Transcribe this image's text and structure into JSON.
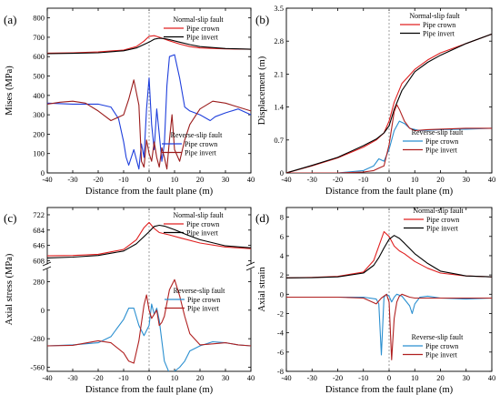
{
  "chart_data": [
    {
      "type": "line",
      "panel_label": "(a)",
      "xlabel": "Distance from the fault plane (m)",
      "ylabel": "Mises (MPa)",
      "xlim": [
        -40,
        40
      ],
      "ylim": [
        0,
        850
      ],
      "xticks": [
        -40,
        -30,
        -20,
        -10,
        0,
        10,
        20,
        30,
        40
      ],
      "yticks": [
        0,
        100,
        200,
        300,
        400,
        500,
        600,
        700,
        800
      ],
      "fault_line_x": 0,
      "legends": [
        {
          "title": "Normal-slip fault",
          "placement": "top-right",
          "entries": [
            {
              "label": "Pipe crown",
              "color": "#e02020"
            },
            {
              "label": "Pipe invert",
              "color": "#000000"
            }
          ]
        },
        {
          "title": "Reverse-slip fault",
          "placement": "bottom-right",
          "entries": [
            {
              "label": "Pipe crown",
              "color": "#1f3fdc"
            },
            {
              "label": "Pipe invert",
              "color": "#9b1c1c"
            }
          ]
        }
      ],
      "series": [
        {
          "group": "Normal-slip fault",
          "name": "Pipe crown",
          "color": "#e02020",
          "x": [
            -40,
            -30,
            -20,
            -10,
            -5,
            -2,
            0,
            2,
            4,
            8,
            12,
            16,
            20,
            30,
            40
          ],
          "y": [
            618,
            620,
            624,
            634,
            652,
            680,
            705,
            708,
            700,
            682,
            665,
            652,
            645,
            640,
            638
          ]
        },
        {
          "group": "Normal-slip fault",
          "name": "Pipe invert",
          "color": "#000000",
          "x": [
            -40,
            -30,
            -20,
            -10,
            -5,
            0,
            2,
            4,
            6,
            8,
            12,
            16,
            20,
            30,
            40
          ],
          "y": [
            615,
            617,
            620,
            630,
            645,
            675,
            690,
            695,
            693,
            688,
            675,
            662,
            652,
            642,
            638
          ]
        },
        {
          "group": "Reverse-slip fault",
          "name": "Pipe crown",
          "color": "#1f3fdc",
          "x": [
            -40,
            -30,
            -20,
            -15,
            -12,
            -10,
            -9,
            -8,
            -6,
            -4,
            -3,
            -2,
            -1,
            0,
            1,
            2,
            3,
            4,
            5,
            6,
            7,
            8,
            10,
            12,
            14,
            16,
            20,
            24,
            26,
            30,
            35,
            40
          ],
          "y": [
            360,
            355,
            355,
            340,
            280,
            160,
            80,
            40,
            120,
            20,
            150,
            80,
            330,
            490,
            250,
            120,
            330,
            200,
            60,
            150,
            450,
            600,
            610,
            490,
            340,
            320,
            300,
            270,
            290,
            310,
            330,
            300
          ]
        },
        {
          "group": "Reverse-slip fault",
          "name": "Pipe invert",
          "color": "#9b1c1c",
          "x": [
            -40,
            -35,
            -30,
            -25,
            -20,
            -15,
            -10,
            -8,
            -6,
            -4,
            -3,
            -2,
            -1,
            0,
            1,
            2,
            3,
            4,
            5,
            6,
            7,
            8,
            9,
            10,
            12,
            14,
            16,
            20,
            25,
            30,
            35,
            40
          ],
          "y": [
            355,
            365,
            370,
            360,
            320,
            270,
            300,
            380,
            480,
            350,
            60,
            30,
            170,
            100,
            60,
            160,
            80,
            30,
            130,
            80,
            20,
            170,
            300,
            120,
            60,
            170,
            250,
            330,
            370,
            360,
            340,
            320
          ]
        }
      ]
    },
    {
      "type": "line",
      "panel_label": "(b)",
      "xlabel": "Distance from the fault plane (m)",
      "ylabel": "Displacement (m)",
      "xlim": [
        -40,
        40
      ],
      "ylim": [
        0,
        3.5
      ],
      "xticks": [
        -40,
        -30,
        -20,
        -10,
        0,
        10,
        20,
        30,
        40
      ],
      "yticks": [
        0.0,
        0.7,
        1.4,
        2.1,
        2.8,
        3.5
      ],
      "fault_line_x": 0,
      "legends": [
        {
          "title": "Normal-slip fault",
          "placement": "top-right",
          "entries": [
            {
              "label": "Pipe crown",
              "color": "#e02020"
            },
            {
              "label": "Pipe invert",
              "color": "#000000"
            }
          ]
        },
        {
          "title": "Reverse-slip fault",
          "placement": "lower-right",
          "entries": [
            {
              "label": "Pipe crown",
              "color": "#2a8fd0"
            },
            {
              "label": "Pipe invert",
              "color": "#b02020"
            }
          ]
        }
      ],
      "series": [
        {
          "group": "Normal-slip fault",
          "name": "Pipe crown",
          "color": "#e02020",
          "x": [
            -40,
            -30,
            -20,
            -10,
            -5,
            -2,
            0,
            2,
            5,
            10,
            15,
            20,
            30,
            40
          ],
          "y": [
            0.0,
            0.15,
            0.32,
            0.55,
            0.7,
            0.85,
            1.1,
            1.5,
            1.9,
            2.2,
            2.4,
            2.55,
            2.75,
            2.95
          ]
        },
        {
          "group": "Normal-slip fault",
          "name": "Pipe invert",
          "color": "#000000",
          "x": [
            -40,
            -30,
            -20,
            -10,
            -5,
            -2,
            0,
            2,
            5,
            10,
            15,
            20,
            30,
            40
          ],
          "y": [
            0.0,
            0.16,
            0.33,
            0.58,
            0.72,
            0.85,
            1.0,
            1.35,
            1.75,
            2.15,
            2.35,
            2.5,
            2.75,
            2.95
          ]
        },
        {
          "group": "Reverse-slip fault",
          "name": "Pipe crown",
          "color": "#2a8fd0",
          "x": [
            -40,
            -20,
            -10,
            -6,
            -4,
            -2,
            0,
            2,
            4,
            6,
            8,
            12,
            20,
            30,
            40
          ],
          "y": [
            0.0,
            0.0,
            0.05,
            0.15,
            0.3,
            0.25,
            0.5,
            0.9,
            1.1,
            1.05,
            0.95,
            0.9,
            0.92,
            0.93,
            0.95
          ]
        },
        {
          "group": "Reverse-slip fault",
          "name": "Pipe invert",
          "color": "#b02020",
          "x": [
            -40,
            -20,
            -10,
            -6,
            -4,
            -2,
            0,
            2,
            3,
            4,
            6,
            8,
            10,
            15,
            20,
            30,
            40
          ],
          "y": [
            0.0,
            0.0,
            0.02,
            0.05,
            0.1,
            0.15,
            0.6,
            1.3,
            1.45,
            1.35,
            1.1,
            0.95,
            0.9,
            0.92,
            0.93,
            0.95,
            0.95
          ]
        }
      ]
    },
    {
      "type": "line",
      "panel_label": "(c)",
      "xlabel": "Distance from the fault plane (m)",
      "ylabel": "Axial stress (MPa)",
      "xlim": [
        -40,
        40
      ],
      "ylim_upper": [
        600,
        740
      ],
      "ylim_lower": [
        -600,
        400
      ],
      "yticks_upper": [
        608,
        646,
        684,
        722
      ],
      "yticks_lower": [
        -560,
        -280,
        0,
        280
      ],
      "y_break": true,
      "xticks": [
        -40,
        -30,
        -20,
        -10,
        0,
        10,
        20,
        30,
        40
      ],
      "fault_line_x": 0,
      "legends": [
        {
          "title": "Normal-slip fault",
          "placement": "top-right",
          "entries": [
            {
              "label": "Pipe crown",
              "color": "#e02020"
            },
            {
              "label": "Pipe invert",
              "color": "#000000"
            }
          ]
        },
        {
          "title": "Reverse-slip fault",
          "placement": "middle-right",
          "entries": [
            {
              "label": "Pipe crown",
              "color": "#2a8fd0"
            },
            {
              "label": "Pipe invert",
              "color": "#b02020"
            }
          ]
        }
      ],
      "series": [
        {
          "group": "Normal-slip fault",
          "name": "Pipe crown",
          "color": "#e02020",
          "x": [
            -40,
            -30,
            -20,
            -10,
            -5,
            -2,
            0,
            2,
            4,
            8,
            12,
            20,
            30,
            40
          ],
          "y": [
            620,
            621,
            624,
            636,
            660,
            690,
            703,
            688,
            678,
            672,
            665,
            652,
            642,
            638
          ]
        },
        {
          "group": "Normal-slip fault",
          "name": "Pipe invert",
          "color": "#000000",
          "x": [
            -40,
            -30,
            -20,
            -10,
            -5,
            0,
            2,
            4,
            6,
            10,
            15,
            20,
            30,
            40
          ],
          "y": [
            615,
            617,
            621,
            632,
            650,
            680,
            693,
            696,
            694,
            685,
            672,
            660,
            645,
            640
          ]
        },
        {
          "group": "Reverse-slip fault",
          "name": "Pipe crown",
          "color": "#2a8fd0",
          "x": [
            -40,
            -30,
            -20,
            -15,
            -10,
            -8,
            -6,
            -4,
            -2,
            0,
            1,
            2,
            3,
            4,
            5,
            6,
            8,
            10,
            12,
            14,
            16,
            20,
            25,
            30,
            35,
            40
          ],
          "y": [
            -350,
            -340,
            -320,
            -260,
            -90,
            20,
            20,
            -150,
            -250,
            -150,
            60,
            -40,
            20,
            -100,
            -300,
            -500,
            -620,
            -600,
            -560,
            -500,
            -400,
            -350,
            -310,
            -320,
            -340,
            -350
          ]
        },
        {
          "group": "Reverse-slip fault",
          "name": "Pipe invert",
          "color": "#b02020",
          "x": [
            -40,
            -30,
            -20,
            -15,
            -10,
            -8,
            -6,
            -4,
            -2,
            -1,
            0,
            1,
            2,
            3,
            4,
            5,
            6,
            8,
            10,
            12,
            14,
            16,
            20,
            25,
            30,
            35,
            40
          ],
          "y": [
            -350,
            -345,
            -300,
            -320,
            -420,
            -500,
            -520,
            -300,
            50,
            150,
            0,
            -80,
            -40,
            0,
            -150,
            -120,
            -60,
            200,
            300,
            140,
            -60,
            -230,
            -340,
            -330,
            -320,
            -340,
            -350
          ]
        }
      ]
    },
    {
      "type": "line",
      "panel_label": "(d)",
      "xlabel": "Distance from the fault plane (m)",
      "ylabel": "Axial strain",
      "xlim": [
        -40,
        40
      ],
      "ylim": [
        -8,
        9
      ],
      "xticks": [
        -40,
        -30,
        -20,
        -10,
        0,
        10,
        20,
        30,
        40
      ],
      "yticks": [
        -8,
        -6,
        -4,
        -2,
        0,
        2,
        4,
        6,
        8
      ],
      "fault_line_x": 0,
      "legends": [
        {
          "title": "Normal-slip fault",
          "placement": "top-right",
          "entries": [
            {
              "label": "Pipe crown",
              "color": "#e02020"
            },
            {
              "label": "Pipe invert",
              "color": "#000000"
            }
          ]
        },
        {
          "title": "Reverse-slip fault",
          "placement": "bottom-right",
          "entries": [
            {
              "label": "Pipe crown",
              "color": "#2a8fd0"
            },
            {
              "label": "Pipe invert",
              "color": "#b02020"
            }
          ]
        }
      ],
      "series": [
        {
          "group": "Normal-slip fault",
          "name": "Pipe crown",
          "color": "#e02020",
          "x": [
            -40,
            -30,
            -20,
            -10,
            -6,
            -4,
            -2,
            0,
            2,
            4,
            6,
            10,
            15,
            20,
            30,
            40
          ],
          "y": [
            1.7,
            1.75,
            1.85,
            2.3,
            3.5,
            5.0,
            6.5,
            6.0,
            5.0,
            4.5,
            4.2,
            3.4,
            2.7,
            2.2,
            1.9,
            1.8
          ]
        },
        {
          "group": "Normal-slip fault",
          "name": "Pipe invert",
          "color": "#000000",
          "x": [
            -40,
            -30,
            -20,
            -10,
            -6,
            -4,
            -2,
            0,
            2,
            4,
            6,
            10,
            15,
            20,
            30,
            40
          ],
          "y": [
            1.7,
            1.72,
            1.8,
            2.2,
            3.0,
            3.8,
            4.8,
            5.7,
            6.1,
            5.8,
            5.3,
            4.2,
            3.2,
            2.4,
            1.9,
            1.8
          ]
        },
        {
          "group": "Reverse-slip fault",
          "name": "Pipe crown",
          "color": "#2a8fd0",
          "x": [
            -40,
            -20,
            -10,
            -5,
            -4,
            -3,
            -2,
            -1,
            0,
            1,
            2,
            3,
            5,
            8,
            9,
            10,
            12,
            15,
            20,
            30,
            40
          ],
          "y": [
            -0.3,
            -0.3,
            -0.3,
            -0.5,
            -1.0,
            -6.3,
            -0.3,
            0.0,
            -0.2,
            -0.8,
            -0.3,
            0.0,
            -0.2,
            -1.2,
            -2.0,
            -1.0,
            -0.3,
            -0.2,
            -0.4,
            -0.5,
            -0.4
          ]
        },
        {
          "group": "Reverse-slip fault",
          "name": "Pipe invert",
          "color": "#b02020",
          "x": [
            -40,
            -20,
            -10,
            -5,
            -3,
            -1,
            0,
            1,
            2,
            3,
            4,
            5,
            8,
            10,
            15,
            20,
            30,
            40
          ],
          "y": [
            -0.3,
            -0.3,
            -0.4,
            -1.0,
            -0.4,
            0.0,
            -0.8,
            -6.8,
            -2.5,
            -0.8,
            -0.2,
            0.0,
            -0.3,
            -0.4,
            -0.4,
            -0.4,
            -0.4,
            -0.4
          ]
        }
      ]
    }
  ]
}
